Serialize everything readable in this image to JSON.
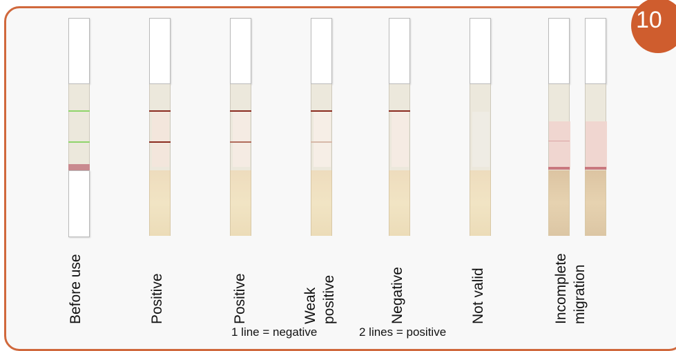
{
  "badge": {
    "number": "10",
    "color": "#cf5d2e"
  },
  "border_color": "#d0683c",
  "strips": [
    {
      "label": [
        "Before use"
      ],
      "lines": [
        {
          "pos": "control",
          "color": "#8fd46a"
        },
        {
          "pos": "test",
          "color": "#8fd46a"
        }
      ],
      "pink_pad": "#c98a8f"
    },
    {
      "label": [
        "Positive"
      ],
      "lines": [
        {
          "pos": "control",
          "color": "#8a2a1e"
        },
        {
          "pos": "test",
          "color": "#8a2a1e"
        }
      ],
      "tint": "#f3e6dc"
    },
    {
      "label": [
        "Positive"
      ],
      "lines": [
        {
          "pos": "control",
          "color": "#8a2a1e"
        },
        {
          "pos": "test",
          "color": "#b06a5a"
        }
      ],
      "tint": "#f5ebe3"
    },
    {
      "label": [
        "Weak",
        "positive"
      ],
      "lines": [
        {
          "pos": "control",
          "color": "#8a2a1e"
        },
        {
          "pos": "test",
          "color": "#d7b8a8"
        }
      ],
      "tint": "#f6eee6"
    },
    {
      "label": [
        "Negative"
      ],
      "lines": [
        {
          "pos": "control",
          "color": "#8a2a1e"
        }
      ],
      "tint": "#f5ebe3"
    },
    {
      "label": [
        "Not valid"
      ],
      "lines": [],
      "tint": "#efece4"
    },
    {
      "label": [
        "Incomplete",
        "migration"
      ],
      "lines": [],
      "tint": "#f0d6d0"
    }
  ],
  "legend": {
    "negative": "1 line = negative",
    "positive": "2 lines = positive"
  }
}
